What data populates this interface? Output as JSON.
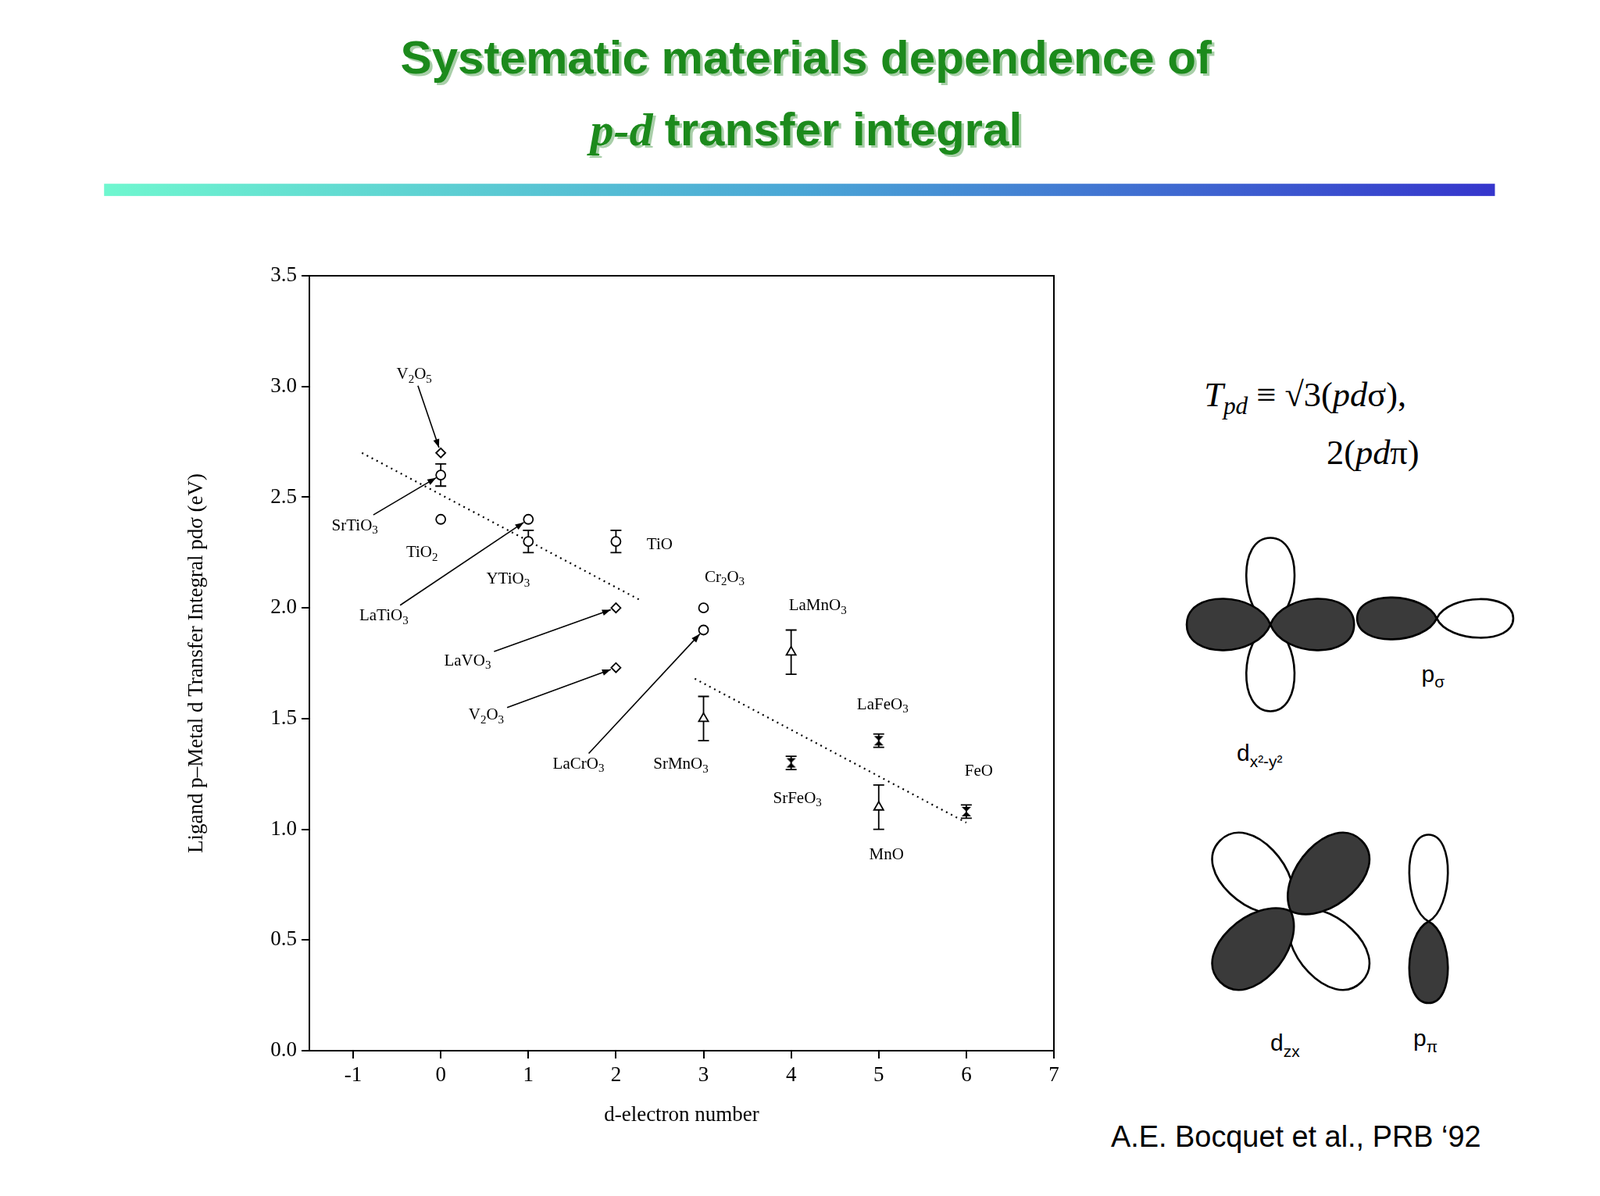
{
  "slide_title": [
    "Systematic materials dependence of",
    "p-d transfer integral"
  ],
  "chart_data": {
    "type": "scatter",
    "x_label": "d-electron number",
    "y_label": "Ligand p–Metal d Transfer Integral pdσ (eV)",
    "xlim": [
      -1.5,
      7
    ],
    "xticks": [
      -1,
      0,
      1,
      2,
      3,
      4,
      5,
      6,
      7
    ],
    "ylim": [
      0,
      3.5
    ],
    "yticks": [
      {
        "value": 0,
        "label": "0.0"
      },
      0.5,
      {
        "value": 1,
        "label": "1.0"
      },
      1.5,
      {
        "value": 2,
        "label": "2.0"
      },
      2.5,
      {
        "value": 3,
        "label": "3.0"
      },
      3.5
    ],
    "grid": false,
    "color": "#000000",
    "series": [
      {
        "marker": "diamond",
        "labels": [
          "V2O5",
          "LaVO3",
          "V2O3"
        ],
        "x": [
          0,
          2,
          2
        ],
        "values": [
          2.7,
          2.0,
          1.73
        ],
        "errors": [
          null,
          null,
          null
        ]
      },
      {
        "marker": "circle",
        "labels": [
          "SrTiO3",
          "TiO2",
          "LaTiO3",
          "YTiO3",
          "TiO",
          "Cr2O3",
          "LaCrO3"
        ],
        "x": [
          0,
          0,
          1,
          1,
          2,
          3,
          3
        ],
        "values": [
          2.6,
          2.4,
          2.4,
          2.3,
          2.3,
          2.0,
          1.9
        ],
        "errors": [
          0.05,
          null,
          null,
          0.05,
          0.05,
          null,
          null
        ]
      },
      {
        "marker": "triangle",
        "labels": [
          "SrMnO3",
          "LaMnO3",
          "MnO"
        ],
        "x": [
          3,
          4,
          5
        ],
        "values": [
          1.5,
          1.8,
          1.1
        ],
        "errors": [
          0.1,
          0.1,
          0.1
        ]
      },
      {
        "marker": "hourglass",
        "labels": [
          "SrFeO3",
          "LaFeO3",
          "FeO"
        ],
        "x": [
          4,
          5,
          6
        ],
        "values": [
          1.3,
          1.4,
          1.08
        ],
        "errors": [
          0.03,
          0.03,
          0.03
        ]
      }
    ],
    "trend_lines": [
      {
        "line_style": "dotted",
        "x": [
          -0.9,
          2.3
        ],
        "values": [
          2.7,
          2.03
        ]
      },
      {
        "line_style": "dotted",
        "x": [
          2.9,
          6.0
        ],
        "values": [
          1.68,
          1.03
        ]
      }
    ]
  },
  "formula": {
    "symbol": "T",
    "subscript": "pd",
    "lines": [
      "≡ √3(pdσ),",
      "2(pdπ)"
    ]
  },
  "orbitals": [
    {
      "name": "d",
      "sub": "x²-y²"
    },
    {
      "name": "p",
      "sub": "σ"
    },
    {
      "name": "d",
      "sub": "zx"
    },
    {
      "name": "p",
      "sub": "π"
    }
  ],
  "citation": "A.E. Bocquet et al., PRB ‘92"
}
